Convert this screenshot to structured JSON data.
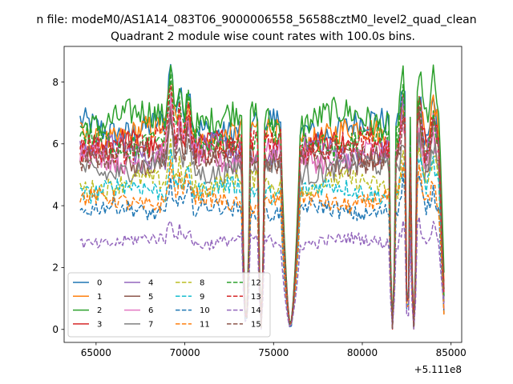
{
  "chart_data": {
    "type": "line",
    "suptitle": "n file: modeM0/AS1A14_083T06_9000006558_56588cztM0_level2_quad_clean",
    "title": "Quadrant 2 module wise count rates with 100.0s bins.",
    "xlabel": "",
    "ylabel": "",
    "x_offset_label": "+5.111e8",
    "xlim": [
      63200,
      85600
    ],
    "ylim": [
      -0.42,
      9.15
    ],
    "xticks": [
      65000,
      70000,
      75000,
      80000,
      85000
    ],
    "xtick_labels": [
      "65000",
      "70000",
      "75000",
      "80000",
      "85000"
    ],
    "yticks": [
      0,
      2,
      4,
      6,
      8
    ],
    "ytick_labels": [
      "0",
      "2",
      "4",
      "6",
      "8"
    ],
    "grid": false,
    "legend_position": "lower-left",
    "segments": [
      [
        64100,
        73100
      ],
      [
        73700,
        74100
      ],
      [
        74500,
        75400
      ],
      [
        76500,
        81500
      ],
      [
        81900,
        82400
      ],
      [
        83100,
        84600
      ]
    ],
    "dips": [
      [
        73200,
        73700
      ],
      [
        74100,
        74500
      ],
      [
        75400,
        76500
      ],
      [
        81500,
        81900
      ],
      [
        82400,
        82700
      ],
      [
        82700,
        83100
      ]
    ],
    "spikes": [
      [
        69200,
        1.15
      ],
      [
        69700,
        0.6
      ],
      [
        70200,
        0.75
      ],
      [
        82300,
        0.9
      ],
      [
        83200,
        0.9
      ],
      [
        84000,
        0.65
      ]
    ],
    "series": [
      {
        "name": "0",
        "color": "#1f77b4",
        "dash": "solid",
        "level": 6.55
      },
      {
        "name": "1",
        "color": "#ff7f0e",
        "dash": "solid",
        "level": 6.3
      },
      {
        "name": "2",
        "color": "#2ca02c",
        "dash": "solid",
        "level": 6.8
      },
      {
        "name": "3",
        "color": "#d62728",
        "dash": "solid",
        "level": 5.9
      },
      {
        "name": "4",
        "color": "#9467bd",
        "dash": "solid",
        "level": 5.75
      },
      {
        "name": "5",
        "color": "#8c564b",
        "dash": "solid",
        "level": 5.45
      },
      {
        "name": "6",
        "color": "#e377c2",
        "dash": "solid",
        "level": 5.6
      },
      {
        "name": "7",
        "color": "#7f7f7f",
        "dash": "solid",
        "level": 5.2
      },
      {
        "name": "8",
        "color": "#bcbd22",
        "dash": "dashed",
        "level": 4.7
      },
      {
        "name": "9",
        "color": "#17becf",
        "dash": "dashed",
        "level": 4.5
      },
      {
        "name": "10",
        "color": "#1f77b4",
        "dash": "dashed",
        "level": 3.85
      },
      {
        "name": "11",
        "color": "#ff7f0e",
        "dash": "dashed",
        "level": 4.15
      },
      {
        "name": "12",
        "color": "#2ca02c",
        "dash": "dashed",
        "level": 6.1
      },
      {
        "name": "13",
        "color": "#d62728",
        "dash": "dashed",
        "level": 5.95
      },
      {
        "name": "14",
        "color": "#9467bd",
        "dash": "dashed",
        "level": 2.85
      },
      {
        "name": "15",
        "color": "#8c564b",
        "dash": "dashed",
        "level": 5.6
      }
    ]
  }
}
